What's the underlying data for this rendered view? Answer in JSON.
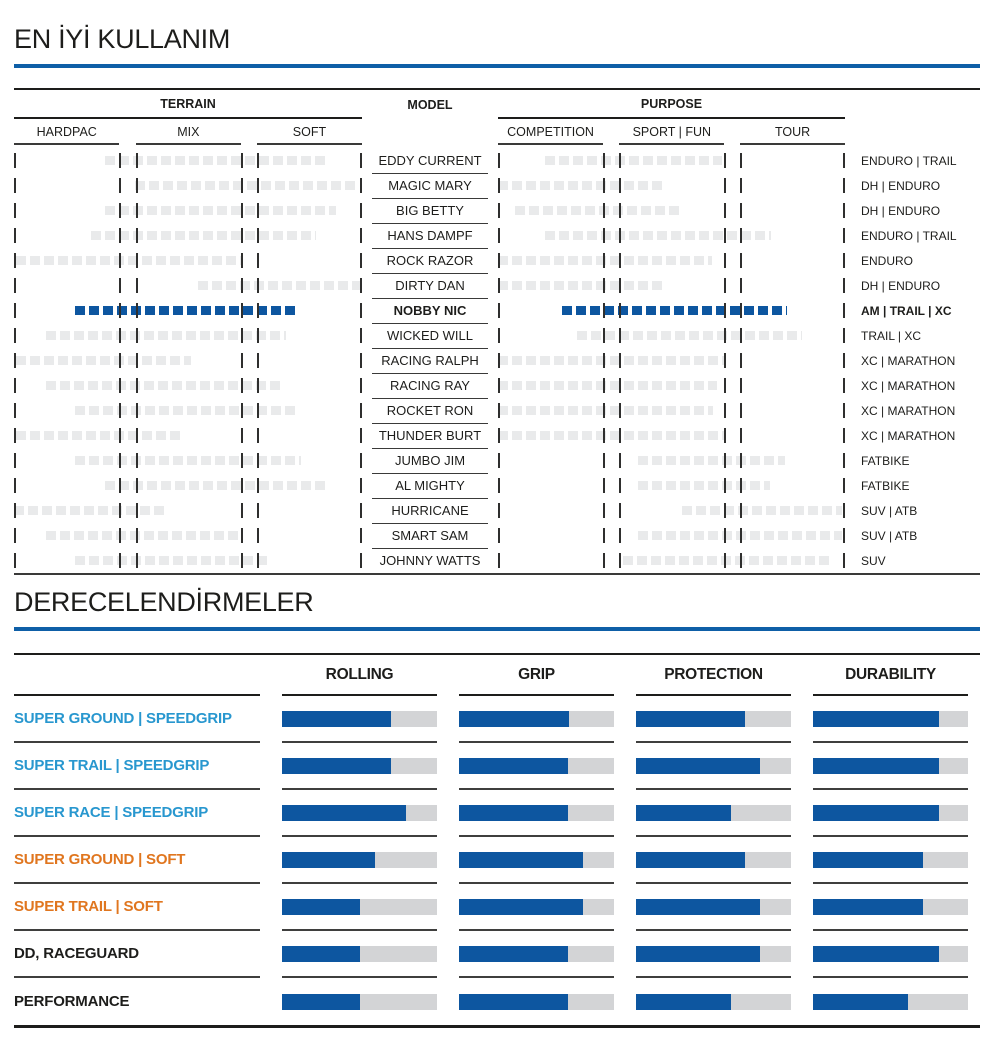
{
  "colors": {
    "accent_blue": "#0d56a0",
    "rule_blue": "#0e5fa7",
    "segment_gray": "#e9eaeb",
    "bar_gray": "#d3d4d6",
    "label_cyan": "#2897cf",
    "label_orange": "#e0761f",
    "text_dark": "#1d1d1b"
  },
  "chart_data": [
    {
      "type": "bar",
      "orientation": "horizontal-range",
      "title": "EN İYİ KULLANIM",
      "group_headers": [
        "TERRAIN",
        "MODEL",
        "PURPOSE"
      ],
      "terrain_columns": [
        "HARDPAC",
        "MIX",
        "SOFT"
      ],
      "purpose_columns": [
        "COMPETITION",
        "SPORT | FUN",
        "TOUR"
      ],
      "tick_positions_pct": [
        0,
        30.3,
        35,
        65.2,
        69.8,
        100
      ],
      "range_units": "percent of full 3-column span (start, end)",
      "rows": [
        {
          "model": "EDDY CURRENT",
          "use": "ENDURO | TRAIL",
          "terrain": [
            26.2,
            90.5
          ],
          "purpose": [
            13.5,
            64.6
          ],
          "highlight": false
        },
        {
          "model": "MAGIC MARY",
          "use": "DH | ENDURO",
          "terrain": [
            34.9,
            98.8
          ],
          "purpose": [
            0,
            47.3
          ],
          "highlight": false
        },
        {
          "model": "BIG BETTY",
          "use": "DH | ENDURO",
          "terrain": [
            26.2,
            92.5
          ],
          "purpose": [
            4.9,
            53.0
          ],
          "highlight": false
        },
        {
          "model": "HANS DAMPF",
          "use": "ENDURO | TRAIL",
          "terrain": [
            22.2,
            86.7
          ],
          "purpose": [
            13.5,
            78.7
          ],
          "highlight": false
        },
        {
          "model": "ROCK RAZOR",
          "use": "ENDURO",
          "terrain": [
            0.6,
            65.1
          ],
          "purpose": [
            0,
            61.7
          ],
          "highlight": false
        },
        {
          "model": "DIRTY DAN",
          "use": "DH | ENDURO",
          "terrain": [
            53.0,
            99.7
          ],
          "purpose": [
            0,
            47.3
          ],
          "highlight": false
        },
        {
          "model": "NOBBY NIC",
          "use": "AM | TRAIL | XC",
          "terrain": [
            17.6,
            81.3
          ],
          "purpose": [
            18.4,
            83.3
          ],
          "highlight": true
        },
        {
          "model": "WICKED WILL",
          "use": "TRAIL | XC",
          "terrain": [
            9.2,
            78.1
          ],
          "purpose": [
            22.8,
            87.6
          ],
          "highlight": false
        },
        {
          "model": "RACING RALPH",
          "use": "XC | MARATHON",
          "terrain": [
            0.6,
            51.0
          ],
          "purpose": [
            0,
            65.4
          ],
          "highlight": false
        },
        {
          "model": "RACING RAY",
          "use": "XC | MARATHON",
          "terrain": [
            9.2,
            77.5
          ],
          "purpose": [
            0,
            63.1
          ],
          "highlight": false
        },
        {
          "model": "ROCKET RON",
          "use": "XC | MARATHON",
          "terrain": [
            17.6,
            81.0
          ],
          "purpose": [
            0,
            62.0
          ],
          "highlight": false
        },
        {
          "model": "THUNDER BURT",
          "use": "XC | MARATHON",
          "terrain": [
            0.6,
            47.8
          ],
          "purpose": [
            0,
            65.4
          ],
          "highlight": false
        },
        {
          "model": "JUMBO JIM",
          "use": "FATBIKE",
          "terrain": [
            17.6,
            82.4
          ],
          "purpose": [
            40.3,
            82.7
          ],
          "highlight": false
        },
        {
          "model": "AL MIGHTY",
          "use": "FATBIKE",
          "terrain": [
            26.2,
            90.5
          ],
          "purpose": [
            40.3,
            78.4
          ],
          "highlight": false
        },
        {
          "model": "HURRICANE",
          "use": "SUV | ATB",
          "terrain": [
            0,
            43.5
          ],
          "purpose": [
            53.0,
            99.1
          ],
          "highlight": false
        },
        {
          "model": "SMART SAM",
          "use": "SUV | ATB",
          "terrain": [
            9.2,
            65.1
          ],
          "purpose": [
            40.3,
            99.1
          ],
          "highlight": false
        },
        {
          "model": "JOHNNY WATTS",
          "use": "SUV",
          "terrain": [
            17.6,
            73.8
          ],
          "purpose": [
            36.0,
            96.3
          ],
          "highlight": false
        }
      ]
    },
    {
      "type": "bar",
      "orientation": "horizontal",
      "title": "DERECELENDİRMELER",
      "categories": [
        "ROLLING",
        "GRIP",
        "PROTECTION",
        "DURABILITY"
      ],
      "value_units": "percent of full bar filled",
      "rows": [
        {
          "label": "SUPER GROUND | SPEEDGRIP",
          "color": "#2897cf",
          "values": [
            70,
            71,
            70,
            81
          ]
        },
        {
          "label": "SUPER TRAIL | SPEEDGRIP",
          "color": "#2897cf",
          "values": [
            70,
            70,
            80,
            81
          ]
        },
        {
          "label": "SUPER RACE | SPEEDGRIP",
          "color": "#2897cf",
          "values": [
            80,
            70,
            61,
            81
          ]
        },
        {
          "label": "SUPER GROUND | SOFT",
          "color": "#e0761f",
          "values": [
            60,
            80,
            70,
            71
          ]
        },
        {
          "label": "SUPER TRAIL | SOFT",
          "color": "#e0761f",
          "values": [
            50,
            80,
            80,
            71
          ]
        },
        {
          "label": "DD, RACEGUARD",
          "color": "#1d1d1b",
          "values": [
            50,
            70,
            80,
            81
          ]
        },
        {
          "label": "PERFORMANCE",
          "color": "#1d1d1b",
          "values": [
            50,
            70,
            61,
            61
          ]
        }
      ]
    }
  ]
}
